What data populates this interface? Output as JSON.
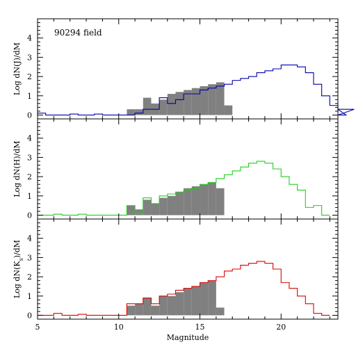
{
  "chart_data": {
    "type": "bar",
    "xlabel": "Magnitude",
    "xlim": [
      5,
      23.5
    ],
    "x_ticks": [
      5,
      10,
      15,
      20
    ],
    "bin_width": 0.5,
    "panels": [
      {
        "id": "J",
        "ylabel_main": "Log dN(J)/dM",
        "ylabel_sub": "",
        "ylim": [
          -0.2,
          5
        ],
        "y_ticks": [
          0,
          1,
          2,
          3,
          4
        ],
        "annotation": "90294 field",
        "line_color": "#0000aa",
        "fill_color": "#808080",
        "outline_hist": {
          "x_start": 5.0,
          "values": [
            0.1,
            0,
            0,
            0,
            0.05,
            0,
            0,
            0.05,
            0,
            0,
            0,
            0,
            0.1,
            0.3,
            0.3,
            0.9,
            0.6,
            0.8,
            1.1,
            1.1,
            1.3,
            1.4,
            1.5,
            1.6,
            1.8,
            1.9,
            2.0,
            2.2,
            2.3,
            2.4,
            2.6,
            2.6,
            2.5,
            2.2,
            1.6,
            1.0,
            0.5,
            0.3,
            0.0,
            0.3
          ]
        },
        "filled_hist": {
          "x_start": 10.5,
          "values": [
            0.3,
            0.3,
            0.9,
            0.6,
            0.8,
            1.1,
            1.2,
            1.3,
            1.4,
            1.5,
            1.6,
            1.7,
            0.5
          ]
        }
      },
      {
        "id": "H",
        "ylabel_main": "Log dN(H)/dM",
        "ylabel_sub": "",
        "ylim": [
          -0.2,
          5
        ],
        "y_ticks": [
          0,
          1,
          2,
          3,
          4
        ],
        "annotation": "",
        "line_color": "#22cc22",
        "fill_color": "#808080",
        "outline_hist": {
          "x_start": 5.0,
          "values": [
            0,
            0,
            0.05,
            0,
            0,
            0.05,
            0,
            0,
            0,
            0,
            0,
            0.5,
            0.1,
            0.9,
            0.6,
            1.0,
            1.1,
            1.2,
            1.3,
            1.4,
            1.6,
            1.7,
            1.9,
            2.1,
            2.3,
            2.5,
            2.7,
            2.8,
            2.7,
            2.4,
            2.0,
            1.6,
            1.3,
            0.4,
            0.5,
            0.0
          ]
        },
        "filled_hist": {
          "x_start": 10.5,
          "values": [
            0.5,
            0.3,
            0.8,
            0.6,
            0.9,
            1.0,
            1.2,
            1.4,
            1.5,
            1.6,
            1.7,
            1.4
          ]
        }
      },
      {
        "id": "Ks",
        "ylabel_main": "Log dN(K",
        "ylabel_sub": "s",
        "ylabel_tail": ")/dM",
        "ylim": [
          -0.2,
          5
        ],
        "y_ticks": [
          0,
          1,
          2,
          3,
          4
        ],
        "annotation": "",
        "line_color": "#dd0000",
        "fill_color": "#808080",
        "outline_hist": {
          "x_start": 5.0,
          "values": [
            0,
            0,
            0.1,
            0,
            0,
            0.05,
            0,
            0,
            0,
            0,
            0,
            0.6,
            0.6,
            0.9,
            0.6,
            1.0,
            1.1,
            1.3,
            1.4,
            1.5,
            1.7,
            1.8,
            2.0,
            2.3,
            2.4,
            2.6,
            2.7,
            2.8,
            2.7,
            2.4,
            1.7,
            1.4,
            1.0,
            0.6,
            0.1,
            0.0
          ]
        },
        "filled_hist": {
          "x_start": 10.5,
          "values": [
            0.5,
            0.6,
            0.9,
            0.5,
            1.0,
            1.0,
            1.2,
            1.4,
            1.5,
            1.7,
            1.8,
            0.4
          ]
        }
      }
    ]
  }
}
